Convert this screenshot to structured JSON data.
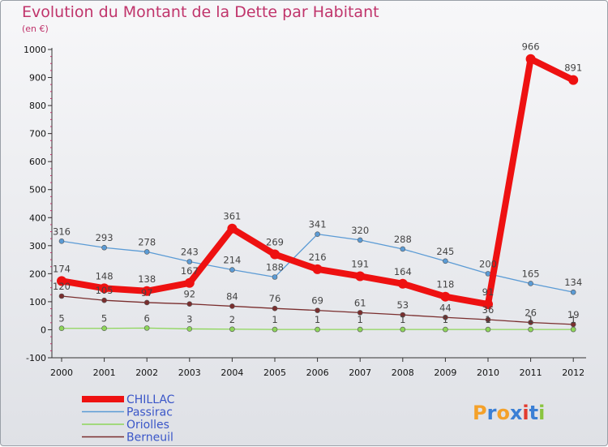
{
  "title": "Evolution du Montant de la Dette par Habitant",
  "subtitle": "(en €)",
  "logo_text": "Proxiti",
  "chart_data": {
    "type": "line",
    "x": [
      "2000",
      "2001",
      "2002",
      "2003",
      "2004",
      "2005",
      "2006",
      "2007",
      "2008",
      "2009",
      "2010",
      "2011",
      "2012"
    ],
    "ylim": [
      -100,
      1000
    ],
    "yticks": [
      -100,
      0,
      100,
      200,
      300,
      400,
      500,
      600,
      700,
      800,
      900,
      1000
    ],
    "grid": false,
    "legend_position": "bottom-left",
    "series": [
      {
        "name": "CHILLAC",
        "color": "#ee1111",
        "values": [
          174,
          148,
          138,
          167,
          361,
          269,
          216,
          191,
          164,
          118,
          91,
          966,
          891
        ]
      },
      {
        "name": "Passirac",
        "color": "#5b9bd5",
        "values": [
          316,
          293,
          278,
          243,
          214,
          188,
          341,
          320,
          288,
          245,
          200,
          165,
          134
        ]
      },
      {
        "name": "Oriolles",
        "color": "#8ed65a",
        "values": [
          5,
          5,
          6,
          3,
          2,
          1,
          1,
          1,
          1,
          1,
          1,
          1,
          1
        ]
      },
      {
        "name": "Berneuil",
        "color": "#7a2e2e",
        "values": [
          120,
          105,
          97,
          92,
          84,
          76,
          69,
          61,
          53,
          44,
          36,
          26,
          19
        ]
      }
    ]
  }
}
